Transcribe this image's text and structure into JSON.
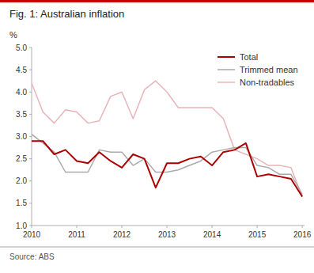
{
  "chart_data": {
    "type": "line",
    "title": "Fig. 1: Australian inflation",
    "ylabel": "%",
    "source": "Source: ABS",
    "x": [
      2010.0,
      2010.25,
      2010.5,
      2010.75,
      2011.0,
      2011.25,
      2011.5,
      2011.75,
      2012.0,
      2012.25,
      2012.5,
      2012.75,
      2013.0,
      2013.25,
      2013.5,
      2013.75,
      2014.0,
      2014.25,
      2014.5,
      2014.75,
      2015.0,
      2015.25,
      2015.5,
      2015.75,
      2016.0
    ],
    "series": [
      {
        "name": "Non-tradables",
        "color": "#e8b4b8",
        "values": [
          4.2,
          3.55,
          3.3,
          3.6,
          3.55,
          3.3,
          3.35,
          3.9,
          4.0,
          3.4,
          4.05,
          4.25,
          4.0,
          3.65,
          3.65,
          3.65,
          3.65,
          3.4,
          2.7,
          2.6,
          2.5,
          2.35,
          2.35,
          2.3,
          1.65
        ]
      },
      {
        "name": "Trimmed mean",
        "color": "#aaaaaa",
        "values": [
          3.05,
          2.85,
          2.65,
          2.2,
          2.2,
          2.2,
          2.7,
          2.65,
          2.65,
          2.35,
          2.5,
          2.2,
          2.2,
          2.25,
          2.35,
          2.45,
          2.65,
          2.7,
          2.75,
          2.75,
          2.35,
          2.3,
          2.15,
          2.15,
          1.7
        ]
      },
      {
        "name": "Total",
        "color": "#aa0000",
        "values": [
          2.9,
          2.9,
          2.6,
          2.7,
          2.45,
          2.4,
          2.65,
          2.45,
          2.3,
          2.6,
          2.5,
          1.85,
          2.4,
          2.4,
          2.5,
          2.55,
          2.35,
          2.65,
          2.7,
          2.85,
          2.1,
          2.15,
          2.1,
          2.05,
          1.65
        ]
      }
    ],
    "xlim": [
      2010.0,
      2016.05
    ],
    "xticks": [
      2010,
      2011,
      2012,
      2013,
      2014,
      2015,
      2016
    ],
    "ylim": [
      1.0,
      5.0
    ],
    "yticks": [
      {
        "value": 1.0,
        "label": "1.0"
      },
      1.5,
      {
        "value": 2.0,
        "label": "2.0"
      },
      2.5,
      {
        "value": 3.0,
        "label": "3.0"
      },
      3.5,
      {
        "value": 4.0,
        "label": "4.0"
      },
      4.5,
      {
        "value": 5.0,
        "label": "5.0"
      }
    ],
    "grid": false,
    "legend": "upper right"
  }
}
